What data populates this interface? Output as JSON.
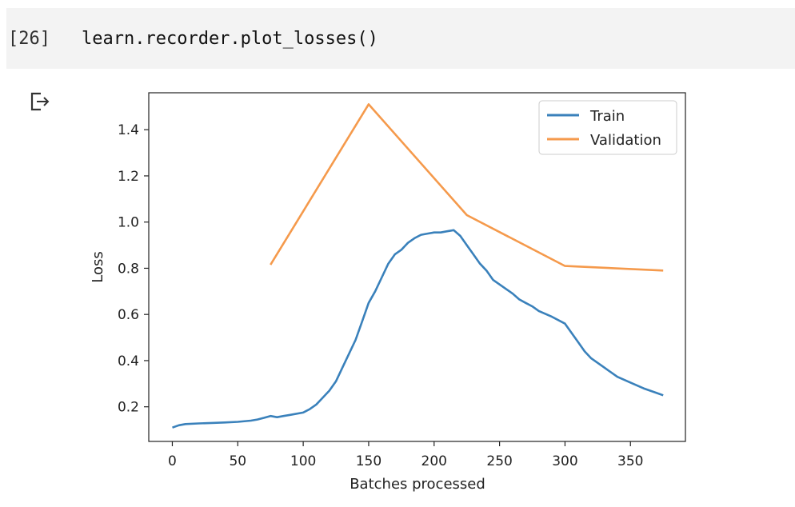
{
  "cell": {
    "exec_count": "[26]",
    "code": "learn.recorder.plot_losses()"
  },
  "output": {
    "icon": "output-redirect-icon"
  },
  "chart_data": {
    "type": "line",
    "xlabel": "Batches processed",
    "ylabel": "Loss",
    "xlim": [
      -18,
      392
    ],
    "ylim": [
      0.05,
      1.56
    ],
    "xticks": [
      0,
      50,
      100,
      150,
      200,
      250,
      300,
      350
    ],
    "yticks": [
      0.2,
      0.4,
      0.6,
      0.8,
      1.0,
      1.2,
      1.4
    ],
    "ytick_labels": [
      "0.2",
      "0.4",
      "0.6",
      "0.8",
      "1.0",
      "1.2",
      "1.4"
    ],
    "grid": false,
    "legend_position": "top-right",
    "series": [
      {
        "name": "Train",
        "color": "#3a81bb",
        "x": [
          0,
          5,
          10,
          20,
          30,
          40,
          50,
          60,
          65,
          70,
          75,
          80,
          85,
          90,
          100,
          105,
          110,
          115,
          120,
          125,
          130,
          135,
          140,
          145,
          150,
          155,
          160,
          165,
          170,
          175,
          180,
          185,
          190,
          195,
          200,
          205,
          210,
          215,
          220,
          225,
          230,
          235,
          240,
          245,
          250,
          255,
          260,
          265,
          270,
          275,
          280,
          290,
          300,
          305,
          310,
          315,
          320,
          330,
          340,
          350,
          360,
          370,
          375
        ],
        "y": [
          0.11,
          0.12,
          0.125,
          0.128,
          0.13,
          0.132,
          0.135,
          0.14,
          0.145,
          0.152,
          0.16,
          0.155,
          0.16,
          0.165,
          0.175,
          0.19,
          0.21,
          0.24,
          0.27,
          0.31,
          0.37,
          0.43,
          0.49,
          0.57,
          0.65,
          0.7,
          0.76,
          0.82,
          0.86,
          0.88,
          0.91,
          0.93,
          0.945,
          0.95,
          0.955,
          0.955,
          0.96,
          0.965,
          0.94,
          0.9,
          0.86,
          0.82,
          0.79,
          0.75,
          0.73,
          0.71,
          0.69,
          0.665,
          0.65,
          0.635,
          0.615,
          0.59,
          0.56,
          0.52,
          0.48,
          0.44,
          0.41,
          0.37,
          0.33,
          0.305,
          0.28,
          0.26,
          0.25
        ]
      },
      {
        "name": "Validation",
        "color": "#f59a4c",
        "x": [
          75,
          150,
          225,
          300,
          375
        ],
        "y": [
          0.815,
          1.51,
          1.03,
          0.81,
          0.79
        ]
      }
    ]
  }
}
